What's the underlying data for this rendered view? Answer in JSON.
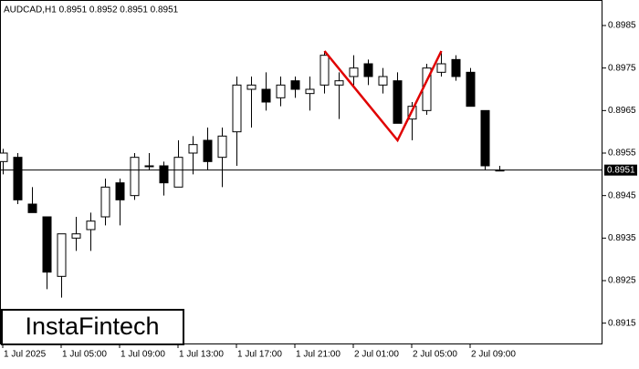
{
  "chart_data": {
    "type": "candlestick",
    "title": "AUDCAD,H1  0.8951 0.8952 0.8951 0.8951",
    "watermark": "InstaFintech",
    "categories": [
      "1 Jul 2025",
      null,
      null,
      null,
      "1 Jul 05:00",
      null,
      null,
      null,
      "1 Jul 09:00",
      null,
      null,
      null,
      "1 Jul 13:00",
      null,
      null,
      null,
      "1 Jul 17:00",
      null,
      null,
      null,
      "1 Jul 21:00",
      null,
      null,
      null,
      "2 Jul 01:00",
      null,
      null,
      null,
      "2 Jul 05:00",
      null,
      null,
      null,
      "2 Jul 09:00",
      null,
      null
    ],
    "open": [
      0.8953,
      0.8954,
      0.8943,
      0.894,
      0.8926,
      0.8935,
      0.8937,
      0.894,
      0.8948,
      0.8945,
      0.8952,
      0.8952,
      0.8947,
      0.8955,
      0.8958,
      0.8954,
      0.896,
      0.897,
      0.897,
      0.8968,
      0.8972,
      0.8969,
      0.8971,
      0.8971,
      0.8973,
      0.8976,
      0.8971,
      0.8972,
      0.8963,
      0.8965,
      0.8974,
      0.8977,
      0.8974,
      0.8965,
      0.8951
    ],
    "high": [
      0.8956,
      0.8955,
      0.8947,
      0.894,
      0.8936,
      0.894,
      0.8941,
      0.8949,
      0.8949,
      0.8955,
      0.8955,
      0.8953,
      0.8958,
      0.8959,
      0.8961,
      0.8961,
      0.8973,
      0.8973,
      0.8974,
      0.8973,
      0.8973,
      0.8973,
      0.8979,
      0.8974,
      0.8978,
      0.8977,
      0.8975,
      0.8974,
      0.8967,
      0.8976,
      0.8979,
      0.8978,
      0.8975,
      0.8965,
      0.8952
    ],
    "low": [
      0.895,
      0.8943,
      0.8941,
      0.8923,
      0.8921,
      0.8932,
      0.8932,
      0.8938,
      0.8938,
      0.8944,
      0.8951,
      0.8945,
      0.8947,
      0.895,
      0.8951,
      0.8947,
      0.8952,
      0.8961,
      0.8965,
      0.8966,
      0.8968,
      0.8965,
      0.8969,
      0.8963,
      0.8971,
      0.8971,
      0.8969,
      0.8962,
      0.8958,
      0.8964,
      0.8973,
      0.8972,
      0.8966,
      0.8951,
      0.8951
    ],
    "close": [
      0.8955,
      0.8944,
      0.8941,
      0.8927,
      0.8936,
      0.8936,
      0.8939,
      0.8947,
      0.8944,
      0.8954,
      0.8952,
      0.8948,
      0.8954,
      0.8957,
      0.8953,
      0.8959,
      0.8971,
      0.8971,
      0.8967,
      0.8971,
      0.897,
      0.897,
      0.8978,
      0.8972,
      0.8975,
      0.8973,
      0.8973,
      0.8962,
      0.8966,
      0.8975,
      0.8976,
      0.8973,
      0.8966,
      0.8952,
      0.8951
    ],
    "ylim": [
      0.891,
      0.8991
    ],
    "yticks": [
      0.8915,
      0.8925,
      0.8935,
      0.8945,
      0.8955,
      0.8965,
      0.8975,
      0.8985
    ],
    "current_price": 0.8951,
    "pattern": {
      "color": "#e00000",
      "points": [
        {
          "index": 22,
          "value": 0.8979
        },
        {
          "index": 27,
          "value": 0.8958
        },
        {
          "index": 30,
          "value": 0.8979
        }
      ]
    }
  }
}
